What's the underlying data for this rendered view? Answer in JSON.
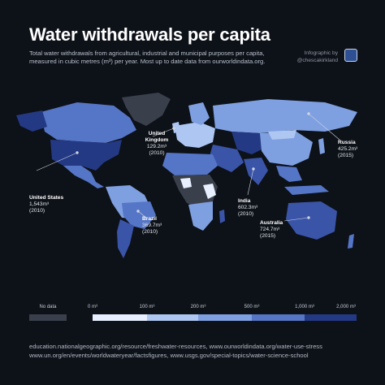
{
  "header": {
    "title": "Water withdrawals per capita",
    "subtitle": "Total water withdrawals from agricultural, industrial and municipal purposes per capita, measured in cubic metres (m³) per year. Most up to date data from ourworldindata.org.",
    "credit_line1": "Infographic by",
    "credit_line2": "@chescakirkland"
  },
  "colors": {
    "background": "#0d1118",
    "no_data": "#3a404b",
    "scale": [
      "#e8f0ff",
      "#aec6f2",
      "#7e9fe0",
      "#5575c6",
      "#3a54a8",
      "#243984"
    ]
  },
  "annotations": [
    {
      "name": "United States",
      "value": "1,543m³",
      "year": "(2010)"
    },
    {
      "name": "United Kingdom",
      "value": "129.2m³",
      "year": "(2010)"
    },
    {
      "name": "Russia",
      "value": "425.2m³",
      "year": "(2015)"
    },
    {
      "name": "Brazil",
      "value": "369.7m³",
      "year": "(2010)"
    },
    {
      "name": "India",
      "value": "602.3m³",
      "year": "(2010)"
    },
    {
      "name": "Australia",
      "value": "724.7m³",
      "year": "(2015)"
    }
  ],
  "legend": {
    "no_data_label": "No data",
    "ticks": [
      "0 m³",
      "100 m³",
      "200 m³",
      "500 m³",
      "1,000 m³",
      "2,000 m³"
    ]
  },
  "sources": {
    "line1": "education.nationalgeographic.org/resource/freshwater-resources, www.ourworldindata.org/water-use-stress",
    "line2": "www.un.org/en/events/worldwateryear/factsfigures, www.usgs.gov/special-topics/water-science-school"
  }
}
